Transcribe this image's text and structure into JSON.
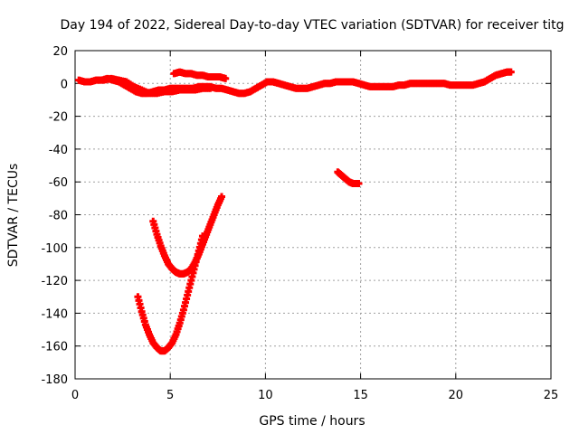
{
  "chart_data": {
    "type": "scatter",
    "title": "Day 194 of 2022, Sidereal Day-to-day VTEC variation (SDTVAR) for receiver titg",
    "xlabel": "GPS time / hours",
    "ylabel": "SDTVAR / TECUs",
    "xlim": [
      0,
      25
    ],
    "ylim": [
      -180,
      20
    ],
    "xticks": [
      0,
      5,
      10,
      15,
      20,
      25
    ],
    "yticks": [
      20,
      0,
      -20,
      -40,
      -60,
      -80,
      -100,
      -120,
      -140,
      -160,
      -180
    ],
    "grid": true,
    "marker": "plus",
    "color": "#ff0000",
    "series": [
      {
        "x": [
          0.2,
          0.5,
          0.8,
          1.1,
          1.4,
          1.7,
          2.0,
          2.3,
          2.6,
          2.9,
          3.2,
          3.5,
          3.8,
          4.1,
          4.4,
          4.7,
          5.0,
          5.3,
          5.6,
          5.9,
          6.2,
          6.5,
          6.8,
          7.1,
          7.4,
          7.7,
          8.0,
          8.3,
          8.6,
          8.9,
          9.2,
          9.5,
          9.8,
          10.1,
          10.4,
          10.7,
          11.0,
          11.3,
          11.6,
          11.9,
          12.2,
          12.5,
          12.8,
          13.1,
          13.4,
          13.7,
          14.0,
          14.3,
          14.6,
          14.9,
          15.2,
          15.5,
          15.8,
          16.1,
          16.4,
          16.7,
          17.0,
          17.3,
          17.6,
          17.9,
          18.2,
          18.5,
          18.8,
          19.1,
          19.4,
          19.7,
          20.0,
          20.3,
          20.6,
          20.9,
          21.2,
          21.5,
          21.8,
          22.1,
          22.4,
          22.7,
          22.9
        ],
        "y": [
          2,
          1,
          1,
          2,
          2,
          3,
          2,
          1,
          -1,
          -3,
          -5,
          -6,
          -6,
          -5,
          -4,
          -4,
          -3,
          -3,
          -3,
          -3,
          -3,
          -2,
          -2,
          -2,
          -3,
          -3,
          -4,
          -5,
          -6,
          -6,
          -5,
          -3,
          -1,
          1,
          1,
          0,
          -1,
          -2,
          -3,
          -3,
          -3,
          -2,
          -1,
          0,
          0,
          1,
          1,
          1,
          1,
          0,
          -1,
          -2,
          -2,
          -2,
          -2,
          -2,
          -1,
          -1,
          0,
          0,
          0,
          0,
          0,
          0,
          0,
          -1,
          -1,
          -1,
          -1,
          -1,
          0,
          1,
          3,
          5,
          6,
          7,
          7
        ]
      },
      {
        "x": [
          5.2,
          5.5,
          5.8,
          6.1,
          6.4,
          6.7,
          7.0,
          7.3,
          7.6,
          7.9
        ],
        "y": [
          6,
          7,
          6,
          6,
          5,
          5,
          4,
          4,
          4,
          3
        ]
      },
      {
        "x": [
          1.5,
          1.9,
          2.3,
          2.7,
          3.1,
          3.5,
          3.9,
          4.3,
          4.7,
          5.1,
          5.5,
          5.9,
          6.3,
          6.7,
          7.1
        ],
        "y": [
          2,
          3,
          2,
          1,
          -2,
          -4,
          -6,
          -6,
          -5,
          -5,
          -4,
          -4,
          -4,
          -3,
          -3
        ]
      },
      {
        "x": [
          3.3,
          3.5,
          3.7,
          3.9,
          4.1,
          4.3,
          4.5,
          4.7,
          4.9,
          5.1,
          5.3,
          5.5,
          5.7,
          5.9,
          6.1,
          6.3,
          6.5,
          6.7
        ],
        "y": [
          -130,
          -139,
          -147,
          -153,
          -158,
          -161,
          -163,
          -163,
          -161,
          -158,
          -153,
          -146,
          -138,
          -129,
          -120,
          -111,
          -102,
          -93
        ]
      },
      {
        "x": [
          4.1,
          4.3,
          4.5,
          4.7,
          4.9,
          5.1,
          5.3,
          5.5,
          5.7,
          5.9,
          6.1,
          6.3,
          6.5,
          6.7,
          6.9,
          7.1,
          7.3,
          7.5,
          7.7
        ],
        "y": [
          -84,
          -92,
          -99,
          -105,
          -110,
          -113,
          -115,
          -116,
          -116,
          -115,
          -113,
          -109,
          -104,
          -98,
          -92,
          -86,
          -80,
          -74,
          -69
        ]
      },
      {
        "x": [
          13.8,
          14.0,
          14.2,
          14.4,
          14.6,
          14.8,
          14.9
        ],
        "y": [
          -54,
          -56,
          -58,
          -60,
          -61,
          -61,
          -61
        ]
      }
    ]
  }
}
